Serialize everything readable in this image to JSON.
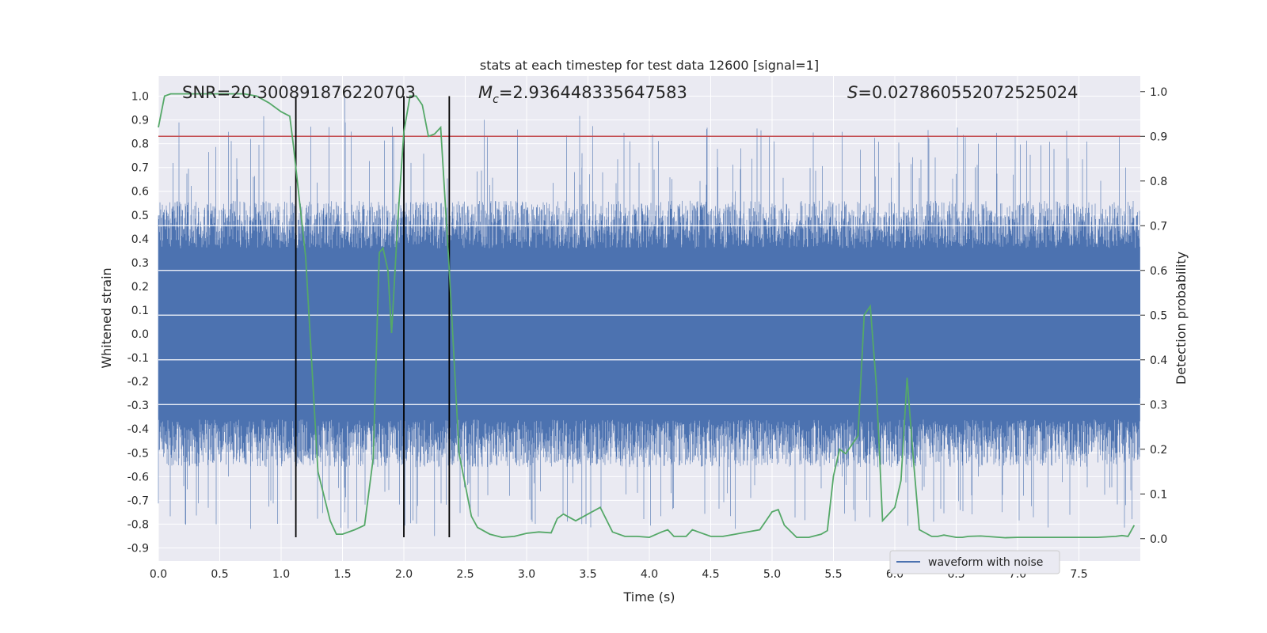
{
  "chart_data": {
    "type": "line",
    "title": "stats at each timestep for test data 12600 [signal=1]",
    "xlabel": "Time (s)",
    "ylabel_left": "Whitened strain",
    "ylabel_right": "Detection probability",
    "xlim": [
      0.0,
      8.0
    ],
    "ylim_left": [
      -0.955,
      1.085
    ],
    "ylim_right": [
      -0.05,
      1.035
    ],
    "grid": true,
    "x_ticks": [
      "0.0",
      "0.5",
      "1.0",
      "1.5",
      "2.0",
      "2.5",
      "3.0",
      "3.5",
      "4.0",
      "4.5",
      "5.0",
      "5.5",
      "6.0",
      "6.5",
      "7.0",
      "7.5"
    ],
    "x_tick_values": [
      0,
      0.5,
      1,
      1.5,
      2,
      2.5,
      3,
      3.5,
      4,
      4.5,
      5,
      5.5,
      6,
      6.5,
      7,
      7.5
    ],
    "y_left_ticks": [
      "1.0",
      "0.9",
      "0.8",
      "0.7",
      "0.6",
      "0.5",
      "0.4",
      "0.3",
      "0.2",
      "0.1",
      "0.0",
      "-0.1",
      "-0.2",
      "-0.3",
      "-0.4",
      "-0.5",
      "-0.6",
      "-0.7",
      "-0.8",
      "-0.9"
    ],
    "y_left_tick_values": [
      1.0,
      0.9,
      0.8,
      0.7,
      0.6,
      0.5,
      0.4,
      0.3,
      0.2,
      0.1,
      0.0,
      -0.1,
      -0.2,
      -0.3,
      -0.4,
      -0.5,
      -0.6,
      -0.7,
      -0.8,
      -0.9
    ],
    "y_right_ticks": [
      "1.0",
      "0.9",
      "0.8",
      "0.7",
      "0.6",
      "0.5",
      "0.4",
      "0.3",
      "0.2",
      "0.1",
      "0.0"
    ],
    "y_right_tick_values": [
      1.0,
      0.9,
      0.8,
      0.7,
      0.6,
      0.5,
      0.4,
      0.3,
      0.2,
      0.1,
      0.0
    ],
    "annotations": {
      "snr": "SNR=20.300891876220703",
      "mc_symbol": "M",
      "mc_sub": "c",
      "mc_value": "=2.936448335647583",
      "s_symbol": "S",
      "s_value": "=0.027860552072525024"
    },
    "threshold": {
      "axis": "right",
      "value": 0.9,
      "color": "#c44e52"
    },
    "vertical_markers": {
      "x": [
        1.12,
        2.0,
        2.37
      ],
      "y_range": [
        -0.855,
        1.0
      ],
      "color": "#000000"
    },
    "series": [
      {
        "name": "waveform with noise",
        "axis": "left",
        "color": "#4c72b0",
        "style": "dense noise band, approx. ±0.55 with spikes up to 1.0 / down to -0.85"
      },
      {
        "axis": "right",
        "color": "#55a868",
        "x": [
          0.0,
          0.05,
          0.1,
          0.2,
          0.3,
          0.5,
          0.7,
          0.8,
          0.9,
          1.0,
          1.07,
          1.1,
          1.2,
          1.3,
          1.4,
          1.45,
          1.5,
          1.6,
          1.68,
          1.75,
          1.8,
          1.83,
          1.87,
          1.9,
          1.95,
          2.0,
          2.05,
          2.1,
          2.15,
          2.2,
          2.25,
          2.3,
          2.37,
          2.45,
          2.55,
          2.6,
          2.7,
          2.8,
          2.9,
          3.0,
          3.1,
          3.2,
          3.25,
          3.3,
          3.4,
          3.5,
          3.6,
          3.7,
          3.8,
          3.9,
          4.0,
          4.1,
          4.15,
          4.2,
          4.3,
          4.35,
          4.4,
          4.5,
          4.6,
          4.7,
          4.8,
          4.9,
          4.95,
          5.0,
          5.05,
          5.1,
          5.2,
          5.3,
          5.4,
          5.45,
          5.5,
          5.55,
          5.6,
          5.7,
          5.75,
          5.8,
          5.85,
          5.9,
          6.0,
          6.05,
          6.1,
          6.15,
          6.2,
          6.3,
          6.35,
          6.4,
          6.5,
          6.55,
          6.6,
          6.7,
          6.8,
          6.9,
          7.0,
          7.2,
          7.5,
          7.65,
          7.8,
          7.85,
          7.9,
          7.95
        ],
        "y": [
          0.92,
          0.99,
          0.995,
          0.995,
          0.995,
          0.995,
          0.995,
          0.99,
          0.975,
          0.955,
          0.945,
          0.88,
          0.63,
          0.15,
          0.04,
          0.01,
          0.01,
          0.02,
          0.03,
          0.18,
          0.64,
          0.65,
          0.6,
          0.46,
          0.71,
          0.91,
          0.99,
          0.99,
          0.97,
          0.9,
          0.905,
          0.92,
          0.6,
          0.19,
          0.05,
          0.025,
          0.01,
          0.003,
          0.005,
          0.012,
          0.015,
          0.013,
          0.045,
          0.055,
          0.04,
          0.055,
          0.07,
          0.015,
          0.005,
          0.005,
          0.003,
          0.015,
          0.02,
          0.005,
          0.005,
          0.02,
          0.015,
          0.005,
          0.005,
          0.01,
          0.015,
          0.02,
          0.04,
          0.06,
          0.065,
          0.03,
          0.003,
          0.003,
          0.01,
          0.018,
          0.14,
          0.2,
          0.19,
          0.23,
          0.5,
          0.52,
          0.34,
          0.04,
          0.07,
          0.13,
          0.36,
          0.18,
          0.02,
          0.005,
          0.005,
          0.008,
          0.003,
          0.003,
          0.005,
          0.006,
          0.004,
          0.002,
          0.003,
          0.003,
          0.003,
          0.003,
          0.005,
          0.007,
          0.005,
          0.03
        ]
      }
    ],
    "legend": {
      "position": "lower-right",
      "entries": [
        "waveform with noise"
      ]
    }
  }
}
